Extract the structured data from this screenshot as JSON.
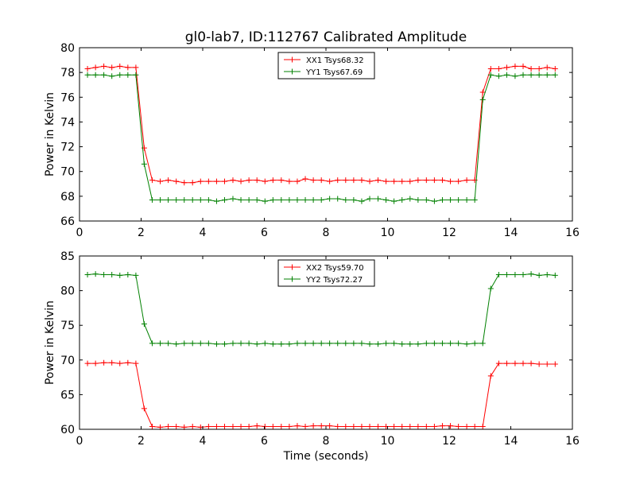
{
  "chart_data": [
    {
      "type": "line",
      "title": "gl0-lab7, ID:112767 Calibrated Amplitude",
      "xlabel": "",
      "ylabel": "Power in Kelvin",
      "xlim": [
        0,
        16
      ],
      "ylim": [
        66,
        80
      ],
      "xticks": [
        0,
        2,
        4,
        6,
        8,
        10,
        12,
        14,
        16
      ],
      "yticks": [
        66,
        68,
        70,
        72,
        74,
        76,
        78,
        80
      ],
      "grid": false,
      "legend_position": "top-center",
      "x": [
        0.26,
        0.52,
        0.79,
        1.05,
        1.31,
        1.57,
        1.83,
        2.1,
        2.36,
        2.62,
        2.88,
        3.14,
        3.4,
        3.67,
        3.93,
        4.19,
        4.45,
        4.71,
        4.98,
        5.24,
        5.5,
        5.76,
        6.02,
        6.28,
        6.55,
        6.81,
        7.07,
        7.33,
        7.59,
        7.85,
        8.12,
        8.38,
        8.64,
        8.9,
        9.16,
        9.42,
        9.69,
        9.95,
        10.21,
        10.47,
        10.73,
        10.99,
        11.26,
        11.52,
        11.78,
        12.04,
        12.3,
        12.57,
        12.83,
        13.09,
        13.35,
        13.61,
        13.87,
        14.14,
        14.4,
        14.66,
        14.92,
        15.18,
        15.44
      ],
      "series": [
        {
          "name": "XX1 Tsys68.32",
          "color": "#ff0000",
          "values": [
            78.3,
            78.4,
            78.5,
            78.4,
            78.5,
            78.4,
            78.4,
            71.9,
            69.3,
            69.2,
            69.3,
            69.2,
            69.1,
            69.1,
            69.2,
            69.2,
            69.2,
            69.2,
            69.3,
            69.2,
            69.3,
            69.3,
            69.2,
            69.3,
            69.3,
            69.2,
            69.2,
            69.4,
            69.3,
            69.3,
            69.2,
            69.3,
            69.3,
            69.3,
            69.3,
            69.2,
            69.3,
            69.2,
            69.2,
            69.2,
            69.2,
            69.3,
            69.3,
            69.3,
            69.3,
            69.2,
            69.2,
            69.3,
            69.3,
            76.4,
            78.3,
            78.3,
            78.4,
            78.5,
            78.5,
            78.3,
            78.3,
            78.4,
            78.3
          ]
        },
        {
          "name": "YY1 Tsys67.69",
          "color": "#008000",
          "values": [
            77.8,
            77.8,
            77.8,
            77.7,
            77.8,
            77.8,
            77.8,
            70.6,
            67.7,
            67.7,
            67.7,
            67.7,
            67.7,
            67.7,
            67.7,
            67.7,
            67.6,
            67.7,
            67.8,
            67.7,
            67.7,
            67.7,
            67.6,
            67.7,
            67.7,
            67.7,
            67.7,
            67.7,
            67.7,
            67.7,
            67.8,
            67.8,
            67.7,
            67.7,
            67.6,
            67.8,
            67.8,
            67.7,
            67.6,
            67.7,
            67.8,
            67.7,
            67.7,
            67.6,
            67.7,
            67.7,
            67.7,
            67.7,
            67.7,
            75.8,
            77.8,
            77.7,
            77.8,
            77.7,
            77.8,
            77.8,
            77.8,
            77.8,
            77.8
          ]
        }
      ]
    },
    {
      "type": "line",
      "title": "",
      "xlabel": "Time (seconds)",
      "ylabel": "Power in Kelvin",
      "xlim": [
        0,
        16
      ],
      "ylim": [
        60,
        85
      ],
      "xticks": [
        0,
        2,
        4,
        6,
        8,
        10,
        12,
        14,
        16
      ],
      "yticks": [
        60,
        65,
        70,
        75,
        80,
        85
      ],
      "grid": false,
      "legend_position": "top-center",
      "x": [
        0.26,
        0.52,
        0.79,
        1.05,
        1.31,
        1.57,
        1.83,
        2.1,
        2.36,
        2.62,
        2.88,
        3.14,
        3.4,
        3.67,
        3.93,
        4.19,
        4.45,
        4.71,
        4.98,
        5.24,
        5.5,
        5.76,
        6.02,
        6.28,
        6.55,
        6.81,
        7.07,
        7.33,
        7.59,
        7.85,
        8.12,
        8.38,
        8.64,
        8.9,
        9.16,
        9.42,
        9.69,
        9.95,
        10.21,
        10.47,
        10.73,
        10.99,
        11.26,
        11.52,
        11.78,
        12.04,
        12.3,
        12.57,
        12.83,
        13.09,
        13.35,
        13.61,
        13.87,
        14.14,
        14.4,
        14.66,
        14.92,
        15.18,
        15.44
      ],
      "series": [
        {
          "name": "XX2 Tsys59.70",
          "color": "#ff0000",
          "values": [
            69.5,
            69.5,
            69.6,
            69.6,
            69.5,
            69.6,
            69.5,
            63.0,
            60.4,
            60.3,
            60.4,
            60.4,
            60.3,
            60.4,
            60.3,
            60.4,
            60.4,
            60.4,
            60.4,
            60.4,
            60.4,
            60.5,
            60.4,
            60.4,
            60.4,
            60.4,
            60.5,
            60.4,
            60.5,
            60.5,
            60.5,
            60.4,
            60.4,
            60.4,
            60.4,
            60.4,
            60.4,
            60.4,
            60.4,
            60.4,
            60.4,
            60.4,
            60.4,
            60.4,
            60.5,
            60.5,
            60.4,
            60.4,
            60.4,
            60.4,
            67.7,
            69.5,
            69.5,
            69.5,
            69.5,
            69.5,
            69.4,
            69.4,
            69.4
          ]
        },
        {
          "name": "YY2 Tsys72.27",
          "color": "#008000",
          "values": [
            82.3,
            82.4,
            82.3,
            82.3,
            82.2,
            82.3,
            82.2,
            75.2,
            72.4,
            72.4,
            72.4,
            72.3,
            72.4,
            72.4,
            72.4,
            72.4,
            72.3,
            72.3,
            72.4,
            72.4,
            72.4,
            72.3,
            72.4,
            72.3,
            72.3,
            72.3,
            72.4,
            72.4,
            72.4,
            72.4,
            72.4,
            72.4,
            72.4,
            72.4,
            72.4,
            72.3,
            72.3,
            72.4,
            72.4,
            72.3,
            72.3,
            72.3,
            72.4,
            72.4,
            72.4,
            72.4,
            72.4,
            72.3,
            72.4,
            72.4,
            80.3,
            82.3,
            82.3,
            82.3,
            82.3,
            82.4,
            82.2,
            82.3,
            82.2
          ]
        }
      ]
    }
  ]
}
